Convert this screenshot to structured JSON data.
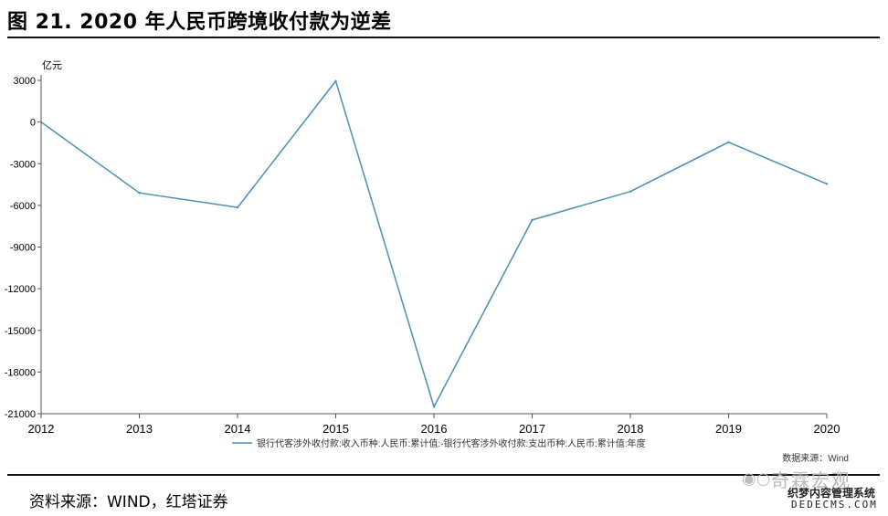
{
  "figure": {
    "title": "图 21. 2020 年人民币跨境收付款为逆差",
    "source": "资料来源：WIND，红塔证券"
  },
  "watermark": {
    "icon": "wechat-icon",
    "name": "奇霖宏观",
    "line1": "织梦内容管理系统",
    "line2": "DEDECMS.COM"
  },
  "chart_data": {
    "type": "line",
    "title": "",
    "ylabel": "亿元",
    "xlabel": "",
    "x": [
      "2012",
      "2013",
      "2014",
      "2015",
      "2016",
      "2017",
      "2018",
      "2019",
      "2020"
    ],
    "series": [
      {
        "name": "银行代客涉外收付款:收入币种:人民币:累计值:-银行代客涉外收付款:支出币种:人民币:累计值:年度",
        "values": [
          0,
          -5100,
          -6150,
          2950,
          -20500,
          -7050,
          -5000,
          -1450,
          -4450
        ],
        "color": "#4a90b0"
      }
    ],
    "y_ticks": [
      3000,
      0,
      -3000,
      -6000,
      -9000,
      -12000,
      -15000,
      -18000,
      -21000
    ],
    "ylim": [
      -21000,
      3000
    ],
    "grid": false,
    "legend_position": "bottom",
    "note": "数据来源：Wind"
  }
}
